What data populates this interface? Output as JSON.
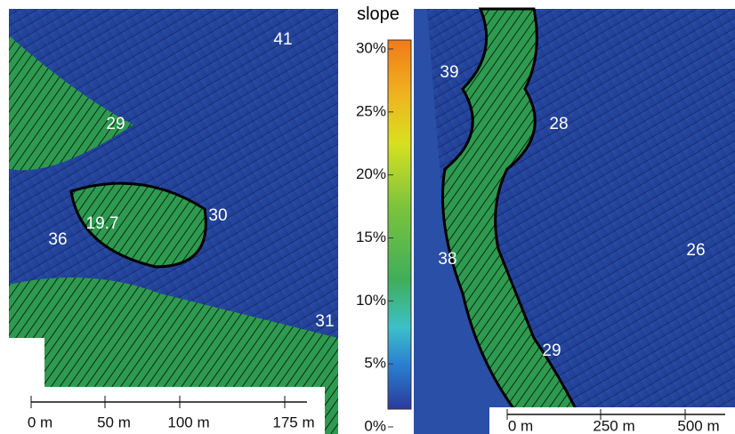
{
  "legend": {
    "title": "slope",
    "ticks": [
      "30%",
      "25%",
      "20%",
      "15%",
      "10%",
      "5%",
      "0%"
    ]
  },
  "left_panel": {
    "labels": [
      "41",
      "29",
      "19.7",
      "30",
      "36",
      "31"
    ],
    "scale_bar": [
      "0 m",
      "50 m",
      "100 m",
      "175 m"
    ]
  },
  "right_panel": {
    "labels": [
      "39",
      "28",
      "26",
      "38",
      "29"
    ],
    "scale_bar": [
      "0 m",
      "250 m",
      "500 m"
    ]
  }
}
